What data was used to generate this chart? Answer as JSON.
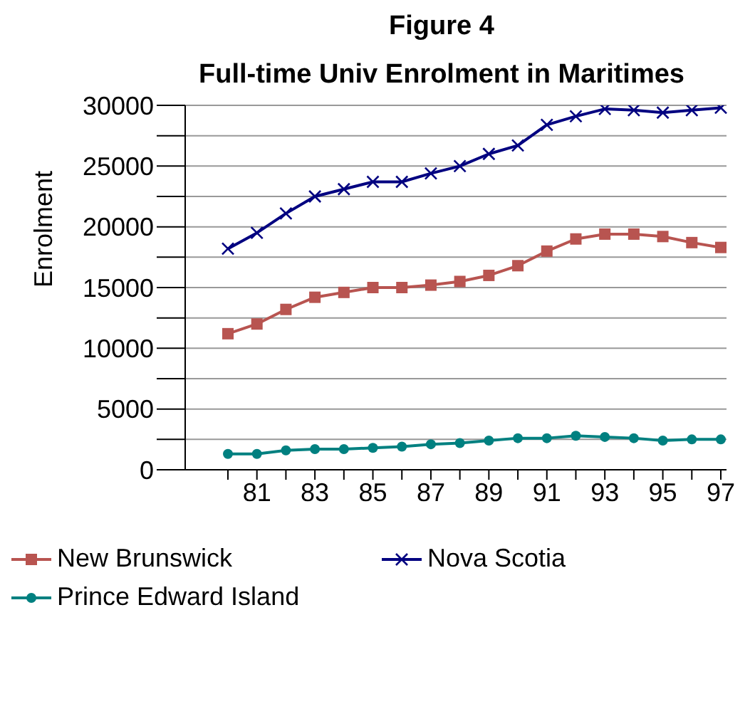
{
  "chart_data": {
    "type": "line",
    "title": "Figure 4",
    "subtitle": "Full-time Univ Enrolment in Maritimes",
    "ylabel": "Enrolment",
    "categories": [
      null,
      "81",
      null,
      "83",
      null,
      "85",
      null,
      "87",
      null,
      "89",
      null,
      "91",
      null,
      "93",
      null,
      "95",
      null,
      "97"
    ],
    "series": [
      {
        "name": "New Brunswick",
        "color": "#b85450",
        "marker": "square",
        "values": [
          11200,
          12000,
          13200,
          14200,
          14600,
          15000,
          15000,
          15200,
          15500,
          16000,
          16800,
          18000,
          19000,
          19400,
          19400,
          19200,
          18700,
          18300
        ]
      },
      {
        "name": "Nova Scotia",
        "color": "#000080",
        "marker": "cross",
        "values": [
          18200,
          19500,
          21100,
          22500,
          23100,
          23700,
          23700,
          24400,
          25000,
          26000,
          26700,
          28400,
          29100,
          29700,
          29600,
          29400,
          29600,
          29800
        ]
      },
      {
        "name": "Prince Edward Island",
        "color": "#008080",
        "marker": "circle",
        "values": [
          1300,
          1300,
          1600,
          1700,
          1700,
          1800,
          1900,
          2100,
          2200,
          2400,
          2600,
          2600,
          2800,
          2700,
          2600,
          2400,
          2500,
          2500
        ]
      }
    ],
    "ylim": [
      0,
      30000
    ],
    "yticks": [
      0,
      {
        "value": 2500,
        "label": null
      },
      5000,
      {
        "value": 7500,
        "label": null
      },
      10000,
      {
        "value": 12500,
        "label": null
      },
      15000,
      {
        "value": 17500,
        "label": null
      },
      20000,
      {
        "value": 22500,
        "label": null
      },
      25000,
      {
        "value": 27500,
        "label": null
      },
      30000
    ],
    "grid": "y",
    "legend": "bottom",
    "line_style": "solid"
  }
}
